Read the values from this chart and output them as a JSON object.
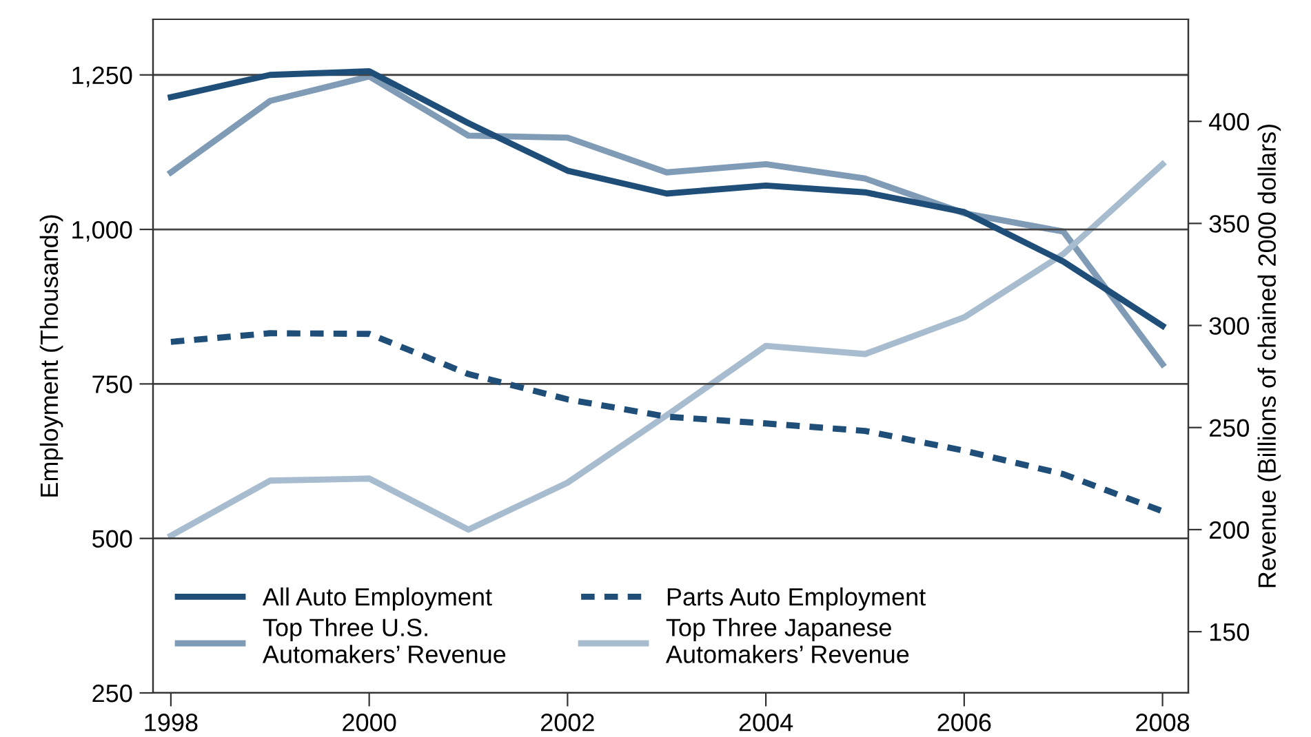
{
  "chart_data": {
    "type": "line",
    "ylabel": "Employment (Thousands)",
    "y2label": "Revenue (Billions of chained 2000 dollars)",
    "x": [
      1998,
      1999,
      2000,
      2001,
      2002,
      2003,
      2004,
      2005,
      2006,
      2007,
      2008
    ],
    "xlim": [
      1997.82,
      2008.26
    ],
    "xticks": [
      1998,
      2000,
      2002,
      2004,
      2006,
      2008
    ],
    "ylim": [
      250,
      1340
    ],
    "yticks": [
      {
        "value": 250,
        "label": "250"
      },
      {
        "value": 500,
        "label": "500"
      },
      {
        "value": 750,
        "label": "750"
      },
      {
        "value": 1000,
        "label": "1,000"
      },
      {
        "value": 1250,
        "label": "1,250"
      }
    ],
    "y2lim": [
      120,
      450
    ],
    "y2ticks": [
      150,
      200,
      250,
      300,
      350,
      400
    ],
    "grid": "y",
    "legend": "bottom left",
    "series": [
      {
        "name": "All Auto Employment",
        "color": "#1f4e79",
        "line_style": "solid",
        "values": [
          1214,
          1250,
          1256,
          1172,
          1095,
          1058,
          1071,
          1060,
          1028,
          948,
          844
        ]
      },
      {
        "name": "Parts Auto Employment",
        "color": "#1f4e79",
        "line_style": "dashed",
        "values": [
          818,
          832,
          831,
          766,
          725,
          697,
          686,
          674,
          642,
          604,
          544
        ]
      },
      {
        "name": "Top Three U.S.\nAutomakers’ Revenue",
        "color": "#7f9bb5",
        "line_style": "solid",
        "axis": "y2",
        "values": [
          375,
          410,
          422,
          393,
          392,
          375,
          379,
          372,
          355,
          346,
          281
        ]
      },
      {
        "name": "Top Three Japanese\nAutomakers’ Revenue",
        "color": "#a8bccf",
        "line_style": "solid",
        "axis": "y2",
        "values": [
          197,
          224,
          225,
          200,
          223,
          256,
          290,
          286,
          304,
          335,
          379
        ]
      }
    ]
  }
}
